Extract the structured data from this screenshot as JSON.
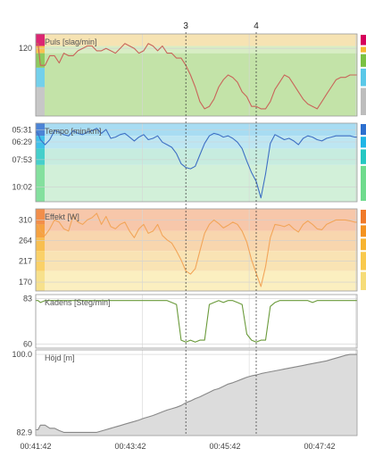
{
  "colors": {
    "pulse_line": "#c9645a",
    "pace_line": "#3d6fc4",
    "power_line": "#f2a559",
    "cadence_line": "#6a9a3a",
    "elevation_fill": "#dcdcdc",
    "elevation_line": "#888888"
  },
  "chart_data": [
    {
      "type": "line",
      "label": "Puls [slag/min]",
      "ytick_labels": [
        "120"
      ],
      "zones": [
        "#f6e3b3",
        "#d8edc4",
        "#c3e3a8"
      ],
      "zone_bars": [
        "#d6005b",
        "#f7b731",
        "#7ac142",
        "#5ac8e8",
        "#bdbdbd"
      ],
      "series": [
        {
          "x": [
            0,
            1,
            2,
            4,
            6,
            8,
            10,
            12,
            14,
            16,
            18,
            20,
            22,
            24,
            26,
            28,
            30,
            32,
            34,
            36,
            38,
            40,
            42,
            44,
            46,
            48,
            50,
            52,
            54,
            56,
            58,
            60,
            62,
            64,
            66,
            68,
            70,
            72,
            74,
            76,
            78,
            80,
            82,
            84,
            86,
            88,
            90,
            92,
            94,
            96,
            98,
            100,
            102,
            104,
            106,
            108,
            110,
            112,
            114,
            116,
            118,
            120,
            122,
            124,
            126,
            128,
            130,
            132,
            134,
            136,
            137
          ],
          "values": [
            122,
            122,
            113,
            113,
            117,
            117,
            114,
            118,
            117,
            117,
            119,
            120,
            121,
            121,
            119,
            119,
            120,
            119,
            118,
            120,
            122,
            121,
            120,
            118,
            119,
            122,
            121,
            119,
            121,
            118,
            118,
            116,
            116,
            113,
            109,
            104,
            98,
            95,
            96,
            99,
            104,
            107,
            109,
            108,
            106,
            102,
            100,
            96,
            96,
            95,
            95,
            98,
            103,
            106,
            109,
            108,
            105,
            102,
            99,
            97,
            96,
            95,
            98,
            101,
            104,
            107,
            108,
            108,
            109,
            109,
            109
          ]
        }
      ]
    },
    {
      "type": "line",
      "label": "Tempo [min/km]",
      "ytick_labels": [
        "05:31",
        "06:29",
        "07:53",
        "10:02"
      ],
      "zones": [
        "#a8dcf2",
        "#bde6f2",
        "#c7ecdf",
        "#d2f0d9"
      ],
      "zone_bars": [
        "#2d6fcf",
        "#1fb5e6",
        "#25c7c2",
        "#6fdb8d"
      ],
      "series": [
        {
          "x": [
            0,
            1,
            2,
            4,
            6,
            8,
            10,
            12,
            14,
            16,
            18,
            20,
            22,
            24,
            26,
            28,
            30,
            32,
            34,
            36,
            38,
            40,
            42,
            44,
            46,
            48,
            50,
            52,
            54,
            56,
            58,
            60,
            62,
            64,
            66,
            68,
            70,
            72,
            74,
            76,
            78,
            80,
            82,
            84,
            86,
            88,
            90,
            92,
            94,
            96,
            98,
            100,
            102,
            104,
            106,
            108,
            110,
            112,
            114,
            116,
            118,
            120,
            122,
            124,
            126,
            128,
            130,
            132,
            134,
            136,
            137
          ],
          "values": [
            5.7,
            5.8,
            6.3,
            6.7,
            6.3,
            5.6,
            5.7,
            5.9,
            6.0,
            5.6,
            5.8,
            5.9,
            5.7,
            5.6,
            5.4,
            5.8,
            5.5,
            6.2,
            6.1,
            5.9,
            5.8,
            6.1,
            6.4,
            6.1,
            5.9,
            6.3,
            6.2,
            6.0,
            6.5,
            6.7,
            6.9,
            7.4,
            8.2,
            8.5,
            8.6,
            8.4,
            7.5,
            6.6,
            6.0,
            5.8,
            5.9,
            6.1,
            6.0,
            6.2,
            6.5,
            7.0,
            8.0,
            8.9,
            9.6,
            10.9,
            9.0,
            6.6,
            5.9,
            6.1,
            6.3,
            6.2,
            6.4,
            6.7,
            6.2,
            6.0,
            6.1,
            6.3,
            6.4,
            6.2,
            6.1,
            6.0,
            6.0,
            6.0,
            6.0,
            6.1,
            6.1
          ]
        }
      ]
    },
    {
      "type": "line",
      "label": "Effekt [W]",
      "ytick_labels": [
        "310",
        "264",
        "217",
        "170"
      ],
      "zones": [
        "#f7c7aa",
        "#f8d6ae",
        "#f9e3b4",
        "#fbefc0"
      ],
      "zone_bars": [
        "#f07a2a",
        "#f4921f",
        "#f7b431",
        "#f9c94d",
        "#f6dc78"
      ],
      "series": [
        {
          "x": [
            0,
            1,
            2,
            4,
            6,
            8,
            10,
            12,
            14,
            16,
            18,
            20,
            22,
            24,
            26,
            28,
            30,
            32,
            34,
            36,
            38,
            40,
            42,
            44,
            46,
            48,
            50,
            52,
            54,
            56,
            58,
            60,
            62,
            64,
            66,
            68,
            70,
            72,
            74,
            76,
            78,
            80,
            82,
            84,
            86,
            88,
            90,
            92,
            94,
            96,
            98,
            100,
            102,
            104,
            106,
            108,
            110,
            112,
            114,
            116,
            118,
            120,
            122,
            124,
            126,
            128,
            130,
            132,
            134,
            136,
            137
          ],
          "values": [
            300,
            300,
            285,
            275,
            290,
            310,
            305,
            290,
            285,
            320,
            305,
            300,
            310,
            315,
            325,
            300,
            318,
            295,
            290,
            300,
            305,
            285,
            270,
            290,
            300,
            280,
            285,
            300,
            275,
            265,
            258,
            240,
            220,
            195,
            188,
            200,
            240,
            280,
            300,
            310,
            302,
            292,
            298,
            305,
            300,
            285,
            260,
            220,
            190,
            160,
            205,
            270,
            300,
            298,
            295,
            300,
            290,
            283,
            300,
            308,
            300,
            290,
            288,
            300,
            305,
            310,
            310,
            310,
            308,
            305,
            305
          ]
        }
      ]
    },
    {
      "type": "line",
      "label": "Kadens [Steg/min]",
      "ytick_labels": [
        "83",
        "60"
      ],
      "series": [
        {
          "x": [
            0,
            1,
            2,
            4,
            6,
            8,
            10,
            12,
            14,
            16,
            18,
            20,
            22,
            24,
            26,
            28,
            30,
            32,
            34,
            36,
            38,
            40,
            42,
            44,
            46,
            48,
            50,
            52,
            54,
            56,
            58,
            60,
            62,
            64,
            66,
            68,
            70,
            72,
            74,
            76,
            78,
            80,
            82,
            84,
            86,
            88,
            90,
            92,
            94,
            96,
            98,
            100,
            102,
            104,
            106,
            108,
            110,
            112,
            114,
            116,
            118,
            120,
            122,
            124,
            126,
            128,
            130,
            132,
            134,
            136,
            137
          ],
          "values": [
            82,
            82,
            81,
            82,
            82,
            82,
            82,
            82,
            82,
            82,
            82,
            82,
            82,
            82,
            82,
            82,
            82,
            82,
            82,
            82,
            82,
            82,
            82,
            82,
            82,
            82,
            82,
            82,
            82,
            82,
            81,
            80,
            62,
            61,
            62,
            61,
            62,
            62,
            80,
            81,
            82,
            81,
            82,
            82,
            81,
            80,
            65,
            62,
            61,
            62,
            62,
            79,
            81,
            82,
            82,
            82,
            82,
            82,
            82,
            82,
            81,
            82,
            82,
            82,
            82,
            82,
            82,
            82,
            82,
            82,
            82
          ]
        }
      ]
    },
    {
      "type": "area",
      "label": "Höjd [m]",
      "ytick_labels": [
        "100.0",
        "82.9"
      ],
      "series": [
        {
          "x": [
            0,
            1,
            2,
            4,
            6,
            8,
            10,
            12,
            14,
            16,
            18,
            20,
            22,
            24,
            26,
            28,
            30,
            32,
            34,
            36,
            38,
            40,
            42,
            44,
            46,
            48,
            50,
            52,
            54,
            56,
            58,
            60,
            62,
            64,
            66,
            68,
            70,
            72,
            74,
            76,
            78,
            80,
            82,
            84,
            86,
            88,
            90,
            92,
            94,
            96,
            98,
            100,
            102,
            104,
            106,
            108,
            110,
            112,
            114,
            116,
            118,
            120,
            122,
            124,
            126,
            128,
            130,
            132,
            134,
            136,
            137
          ],
          "values": [
            83.5,
            83.5,
            84.5,
            84.5,
            83.8,
            83.8,
            83.3,
            82.9,
            82.9,
            82.9,
            82.9,
            82.9,
            82.9,
            82.9,
            82.9,
            83.2,
            83.5,
            83.8,
            84.1,
            84.4,
            84.7,
            85.0,
            85.3,
            85.6,
            86.0,
            86.3,
            86.6,
            87.0,
            87.4,
            87.8,
            88.1,
            88.4,
            88.8,
            89.4,
            89.8,
            90.3,
            90.7,
            91.2,
            91.7,
            92.2,
            92.5,
            93.0,
            93.5,
            93.8,
            94.2,
            94.6,
            95.0,
            95.3,
            95.5,
            95.8,
            96.0,
            96.2,
            96.4,
            96.6,
            96.8,
            97.0,
            97.2,
            97.4,
            97.6,
            97.8,
            98.0,
            98.2,
            98.4,
            98.6,
            98.9,
            99.2,
            99.5,
            99.8,
            100.0,
            100.0,
            100.0
          ]
        }
      ]
    }
  ],
  "x_axis": {
    "tick_labels": [
      "00:41:42",
      "00:43:42",
      "00:45:42",
      "00:47:42"
    ]
  },
  "markers": [
    "3",
    "4"
  ]
}
